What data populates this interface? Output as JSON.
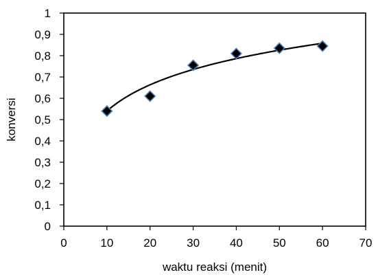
{
  "chart_data": {
    "type": "scatter",
    "title": "",
    "xlabel": "waktu reaksi (menit)",
    "ylabel": "konversi",
    "xlim": [
      0,
      70
    ],
    "ylim": [
      0,
      1
    ],
    "x_ticks": [
      "0",
      "10",
      "20",
      "30",
      "40",
      "50",
      "60",
      "70"
    ],
    "y_ticks": [
      "0",
      "0,1",
      "0,2",
      "0,3",
      "0,4",
      "0,5",
      "0,6",
      "0,7",
      "0,8",
      "0,9",
      "1"
    ],
    "grid": false,
    "legend": "none",
    "series": [
      {
        "marker": "diamond",
        "marker_color": "#000000",
        "marker_edge_color": "#4f81bd",
        "x": [
          10,
          20,
          30,
          40,
          50,
          60
        ],
        "y": [
          0.54,
          0.61,
          0.755,
          0.81,
          0.835,
          0.845
        ]
      }
    ],
    "trendline": {
      "type": "logarithmic",
      "color": "#000000",
      "x_range": [
        10,
        60
      ],
      "a": 0.1775,
      "b": 0.1315
    }
  }
}
